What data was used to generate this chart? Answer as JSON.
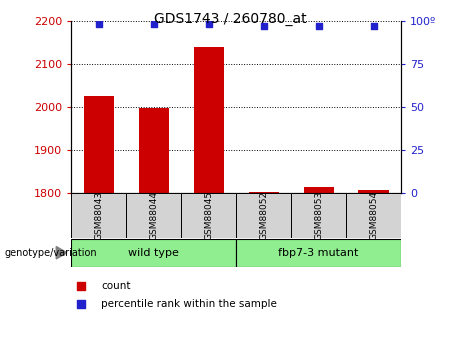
{
  "title": "GDS1743 / 260780_at",
  "samples": [
    "GSM88043",
    "GSM88044",
    "GSM88045",
    "GSM88052",
    "GSM88053",
    "GSM88054"
  ],
  "bar_values": [
    2025,
    1998,
    2140,
    1802,
    1815,
    1808
  ],
  "percentile_values": [
    98,
    98,
    98,
    97,
    97,
    97
  ],
  "bar_color": "#cc0000",
  "dot_color": "#2222cc",
  "ylim_left": [
    1800,
    2200
  ],
  "ylim_right": [
    0,
    100
  ],
  "yticks_left": [
    1800,
    1900,
    2000,
    2100,
    2200
  ],
  "yticks_right": [
    0,
    25,
    50,
    75,
    100
  ],
  "groups": [
    {
      "label": "wild type",
      "start": 0,
      "end": 3,
      "color": "#90ee90"
    },
    {
      "label": "fbp7-3 mutant",
      "start": 3,
      "end": 6,
      "color": "#90ee90"
    }
  ],
  "group_label": "genotype/variation",
  "legend_count_label": "count",
  "legend_percentile_label": "percentile rank within the sample",
  "bar_width": 0.55,
  "left_tick_color": "#cc0000",
  "right_tick_color": "#2222cc",
  "sample_box_color": "#d3d3d3",
  "background_color": "#ffffff"
}
